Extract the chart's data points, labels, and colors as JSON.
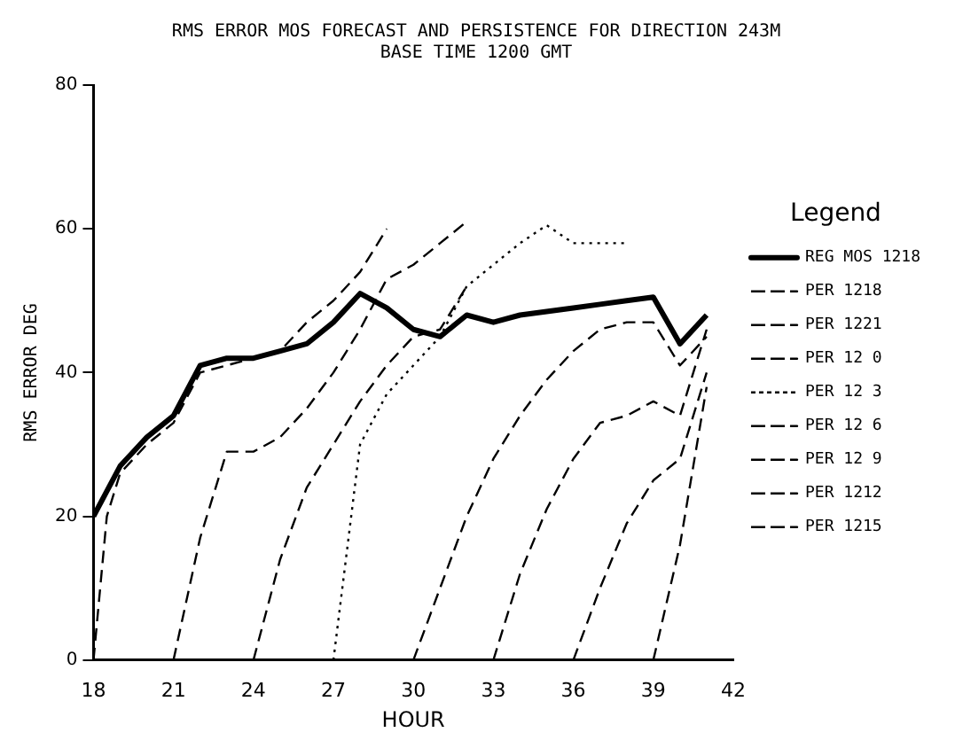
{
  "chart_data": {
    "type": "line",
    "title": "RMS ERROR MOS FORECAST AND PERSISTENCE FOR DIRECTION 243M",
    "subtitle": "BASE TIME 1200 GMT",
    "xlabel": "HOUR",
    "ylabel": "RMS ERROR DEG",
    "legend_title": "Legend",
    "legend": "right",
    "grid": false,
    "marker": "none",
    "xlim": [
      18,
      42
    ],
    "xticks": [
      18,
      21,
      24,
      27,
      30,
      33,
      36,
      39,
      42
    ],
    "ylim": [
      0,
      80
    ],
    "yticks": [
      0,
      20,
      40,
      60,
      80
    ],
    "series": [
      {
        "name": "REG MOS 1218",
        "color": "#000000",
        "line_style": "solid",
        "x": [
          18,
          19,
          20,
          21,
          22,
          23,
          24,
          25,
          26,
          27,
          28,
          29,
          30,
          31,
          32,
          33,
          34,
          35,
          36,
          37,
          38,
          39,
          40,
          41
        ],
        "values": [
          20,
          27,
          31,
          34,
          41,
          42,
          42,
          43,
          44,
          47,
          51,
          49,
          46,
          45,
          48,
          47,
          48,
          48.5,
          49,
          49.5,
          50,
          50.5,
          44,
          48
        ]
      },
      {
        "name": "PER 1218",
        "color": "#000000",
        "line_style": "dashed",
        "x": [
          18,
          18.5,
          19,
          20,
          21,
          22,
          23,
          24,
          25,
          26,
          27,
          28,
          29
        ],
        "values": [
          0,
          20,
          26,
          30,
          33,
          40,
          41,
          42,
          43,
          47,
          50,
          54,
          60
        ]
      },
      {
        "name": "PER 1221",
        "color": "#000000",
        "line_style": "dashed",
        "x": [
          21,
          22,
          23,
          24,
          25,
          26,
          27,
          28,
          29,
          30,
          31,
          32
        ],
        "values": [
          0,
          17,
          29,
          29,
          31,
          35,
          40,
          46,
          53,
          55,
          58,
          61
        ]
      },
      {
        "name": "PER 12 0",
        "color": "#000000",
        "line_style": "dashed",
        "x": [
          24,
          25,
          26,
          27,
          28,
          29,
          30,
          31,
          32
        ],
        "values": [
          0,
          14,
          24,
          30,
          36,
          41,
          45,
          46,
          52
        ]
      },
      {
        "name": "PER 12 3",
        "color": "#000000",
        "line_style": "dotted",
        "x": [
          27,
          27.5,
          28,
          29,
          30,
          31,
          32,
          33,
          34,
          35,
          36,
          37,
          38
        ],
        "values": [
          0,
          15,
          30,
          37,
          41,
          45,
          52,
          55,
          58,
          60.5,
          58,
          58,
          58
        ]
      },
      {
        "name": "PER 12 6",
        "color": "#000000",
        "line_style": "dashed",
        "x": [
          30,
          31,
          32,
          33,
          34,
          35,
          36,
          37,
          38,
          39,
          40,
          41
        ],
        "values": [
          0,
          10,
          20,
          28,
          34,
          39,
          43,
          46,
          47,
          47,
          41,
          45
        ]
      },
      {
        "name": "PER 12 9",
        "color": "#000000",
        "line_style": "dashed",
        "x": [
          33,
          34,
          35,
          36,
          37,
          38,
          39,
          40,
          41
        ],
        "values": [
          0,
          12,
          21,
          28,
          33,
          34,
          36,
          34,
          46
        ]
      },
      {
        "name": "PER 1212",
        "color": "#000000",
        "line_style": "dashed",
        "x": [
          36,
          37,
          38,
          39,
          40,
          41
        ],
        "values": [
          0,
          10,
          19,
          25,
          28,
          40
        ]
      },
      {
        "name": "PER 1215",
        "color": "#000000",
        "line_style": "dashed",
        "x": [
          39,
          40,
          40.5,
          41
        ],
        "values": [
          0,
          16,
          27,
          38
        ]
      }
    ]
  }
}
